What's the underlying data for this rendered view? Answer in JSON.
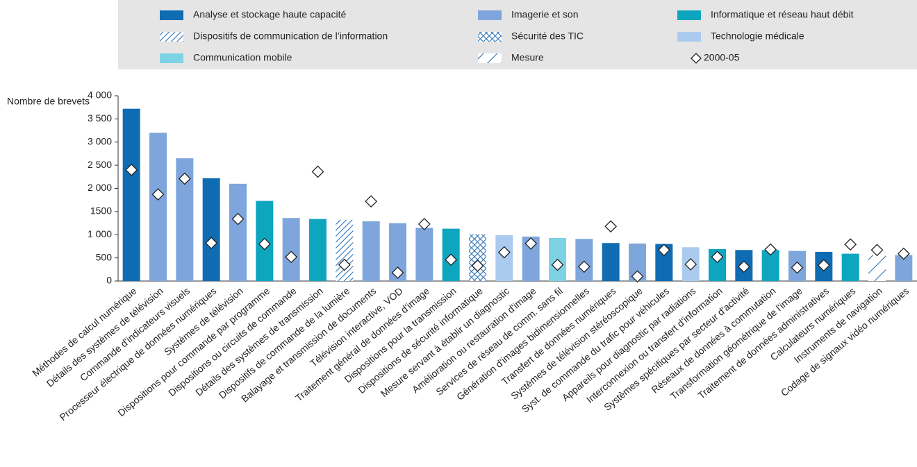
{
  "chart_data": {
    "type": "bar",
    "y_label": "Nombre de brevets",
    "groups": [
      {
        "name": "Analyse et stockage haute capacité",
        "color": "#0f6cb3",
        "pattern": "solid"
      },
      {
        "name": "Imagerie et son",
        "color": "#7ea6dc",
        "pattern": "solid"
      },
      {
        "name": "Informatique et réseau haut débit",
        "color": "#0ea5bf",
        "pattern": "solid"
      },
      {
        "name": "Dispositifs de communication de l’information",
        "color": "#2f74b8",
        "pattern": "hatch"
      },
      {
        "name": "Sécurité des TIC",
        "color": "#2f74b8",
        "pattern": "crosshatch"
      },
      {
        "name": "Technologie médicale",
        "color": "#abcbee",
        "pattern": "solid"
      },
      {
        "name": "Communication mobile",
        "color": "#7dd2e4",
        "pattern": "solid"
      },
      {
        "name": "Mesure",
        "color": "#2f74b8",
        "pattern": "sparse"
      }
    ],
    "categories": [
      "Méthodes de calcul numérique",
      "Détails des systèmes de télévision",
      "Commande d'indicateurs visuels",
      "Processeur électrique de données numériques",
      "Systèmes de télévision",
      "Dispositions pour commande par programme",
      "Dispositions ou circuits de commande",
      "Détails des systèmes de transmission",
      "Dispositifs de commande de la lumière",
      "Balayage et transmission de documents",
      "Télévision interactive, VOD",
      "Traitement général de données d'image",
      "Dispositions pour la transmission",
      "Dispositions de sécurité informatique",
      "Mesure servant à établir un diagnostic",
      "Amélioration ou restauration d'image",
      "Services de réseau de comm. sans fil",
      "Génération d'images bidimensionnelles",
      "Transfert de données numériques",
      "Systèmes de télévision stéréoscopique",
      "Syst. de commande du trafic pour véhicules",
      "Appareils pour diagnostic par radiations",
      "Interconnexion ou transfert d'information",
      "Systèmes spécifiques par secteur d'activité",
      "Réseaux de données à commutation",
      "Transformation géométrique de l'image",
      "Traitement de données administratives",
      "Calculateurs numériques",
      "Instruments de navigation",
      "Codage de signaux vidéo numériques"
    ],
    "values": [
      3720,
      3200,
      2650,
      2220,
      2100,
      1730,
      1360,
      1340,
      1320,
      1290,
      1250,
      1150,
      1130,
      1010,
      990,
      960,
      930,
      910,
      820,
      810,
      800,
      730,
      690,
      670,
      670,
      650,
      630,
      590,
      560,
      560
    ],
    "bar_group": [
      0,
      1,
      1,
      0,
      1,
      2,
      1,
      2,
      3,
      1,
      1,
      1,
      2,
      4,
      5,
      1,
      6,
      1,
      0,
      1,
      0,
      5,
      2,
      0,
      2,
      1,
      0,
      2,
      7,
      1
    ],
    "series": [
      {
        "name": "2000-05",
        "marker": "diamond",
        "color": "#ffffff",
        "values": [
          2400,
          1870,
          2210,
          820,
          1340,
          800,
          520,
          2360,
          350,
          1720,
          180,
          1230,
          460,
          330,
          620,
          810,
          350,
          310,
          1180,
          100,
          670,
          360,
          520,
          310,
          680,
          290,
          340,
          790,
          670,
          590
        ]
      }
    ],
    "ylim": [
      0,
      4000
    ],
    "yticks": [
      0,
      500,
      {
        "value": 1000,
        "label": "1 000"
      },
      {
        "value": 1500,
        "label": "1500"
      },
      {
        "value": 2000,
        "label": "2 000"
      },
      {
        "value": 2500,
        "label": "2 500"
      },
      {
        "value": 3000,
        "label": "3 000"
      },
      {
        "value": 3500,
        "label": "3 500"
      },
      {
        "value": 4000,
        "label": "4 000"
      }
    ],
    "grid": false
  }
}
